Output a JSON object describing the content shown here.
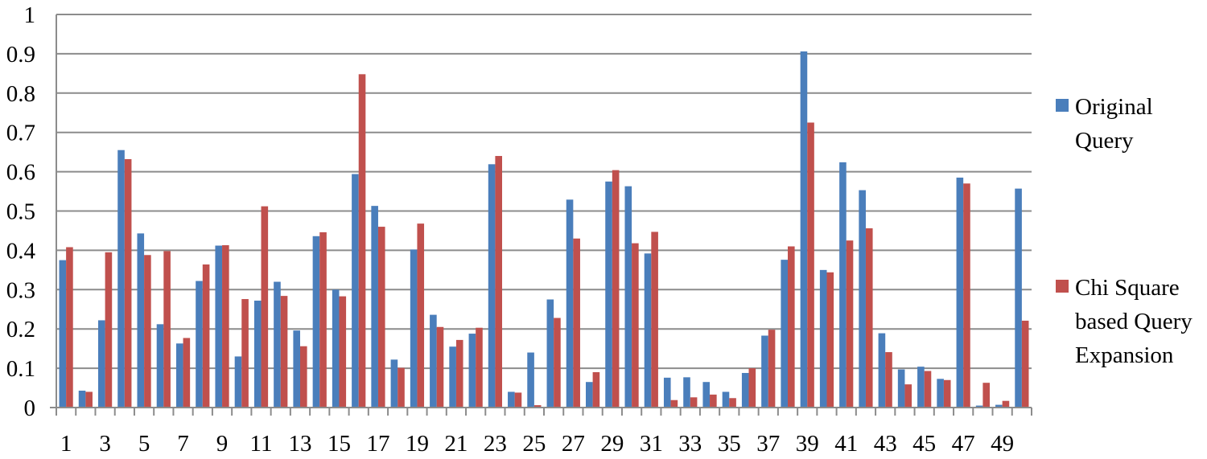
{
  "chart_data": {
    "type": "bar",
    "categories": [
      "1",
      "2",
      "3",
      "4",
      "5",
      "6",
      "7",
      "8",
      "9",
      "10",
      "11",
      "12",
      "13",
      "14",
      "15",
      "16",
      "17",
      "18",
      "19",
      "20",
      "21",
      "22",
      "23",
      "24",
      "25",
      "26",
      "27",
      "28",
      "29",
      "30",
      "31",
      "32",
      "33",
      "34",
      "35",
      "36",
      "37",
      "38",
      "39",
      "40",
      "41",
      "42",
      "43",
      "44",
      "45",
      "46",
      "47",
      "48",
      "49",
      "50"
    ],
    "x_tick_labels": [
      "1",
      "3",
      "5",
      "7",
      "9",
      "11",
      "13",
      "15",
      "17",
      "19",
      "21",
      "23",
      "25",
      "27",
      "29",
      "31",
      "33",
      "35",
      "37",
      "39",
      "41",
      "43",
      "45",
      "47",
      "49"
    ],
    "ylim": [
      0,
      1
    ],
    "y_ticks": [
      "0",
      "0.1",
      "0.2",
      "0.3",
      "0.4",
      "0.5",
      "0.6",
      "0.7",
      "0.8",
      "0.9",
      "1"
    ],
    "grid": true,
    "legend_position": "right",
    "series": [
      {
        "name": "Original Query",
        "color": "#4a7ebb",
        "values": [
          0.375,
          0.043,
          0.222,
          0.655,
          0.443,
          0.212,
          0.163,
          0.322,
          0.412,
          0.13,
          0.272,
          0.32,
          0.196,
          0.436,
          0.3,
          0.594,
          0.513,
          0.122,
          0.402,
          0.236,
          0.155,
          0.188,
          0.619,
          0.04,
          0.14,
          0.275,
          0.529,
          0.065,
          0.575,
          0.563,
          0.392,
          0.076,
          0.077,
          0.065,
          0.04,
          0.088,
          0.183,
          0.376,
          0.906,
          0.35,
          0.624,
          0.553,
          0.189,
          0.097,
          0.104,
          0.073,
          0.585,
          0.005,
          0.007,
          0.557
        ]
      },
      {
        "name": "Chi Square based Query Expansion",
        "color": "#c0504d",
        "values": [
          0.408,
          0.04,
          0.395,
          0.632,
          0.388,
          0.398,
          0.177,
          0.364,
          0.413,
          0.276,
          0.512,
          0.284,
          0.156,
          0.446,
          0.283,
          0.848,
          0.46,
          0.101,
          0.468,
          0.205,
          0.172,
          0.203,
          0.64,
          0.038,
          0.006,
          0.228,
          0.43,
          0.09,
          0.604,
          0.418,
          0.447,
          0.019,
          0.026,
          0.033,
          0.024,
          0.1,
          0.198,
          0.41,
          0.725,
          0.344,
          0.425,
          0.456,
          0.141,
          0.059,
          0.093,
          0.07,
          0.57,
          0.063,
          0.017,
          0.221
        ]
      }
    ]
  },
  "legend": {
    "items": [
      {
        "label": "Original Query"
      },
      {
        "label": "Chi Square based Query Expansion"
      }
    ]
  }
}
